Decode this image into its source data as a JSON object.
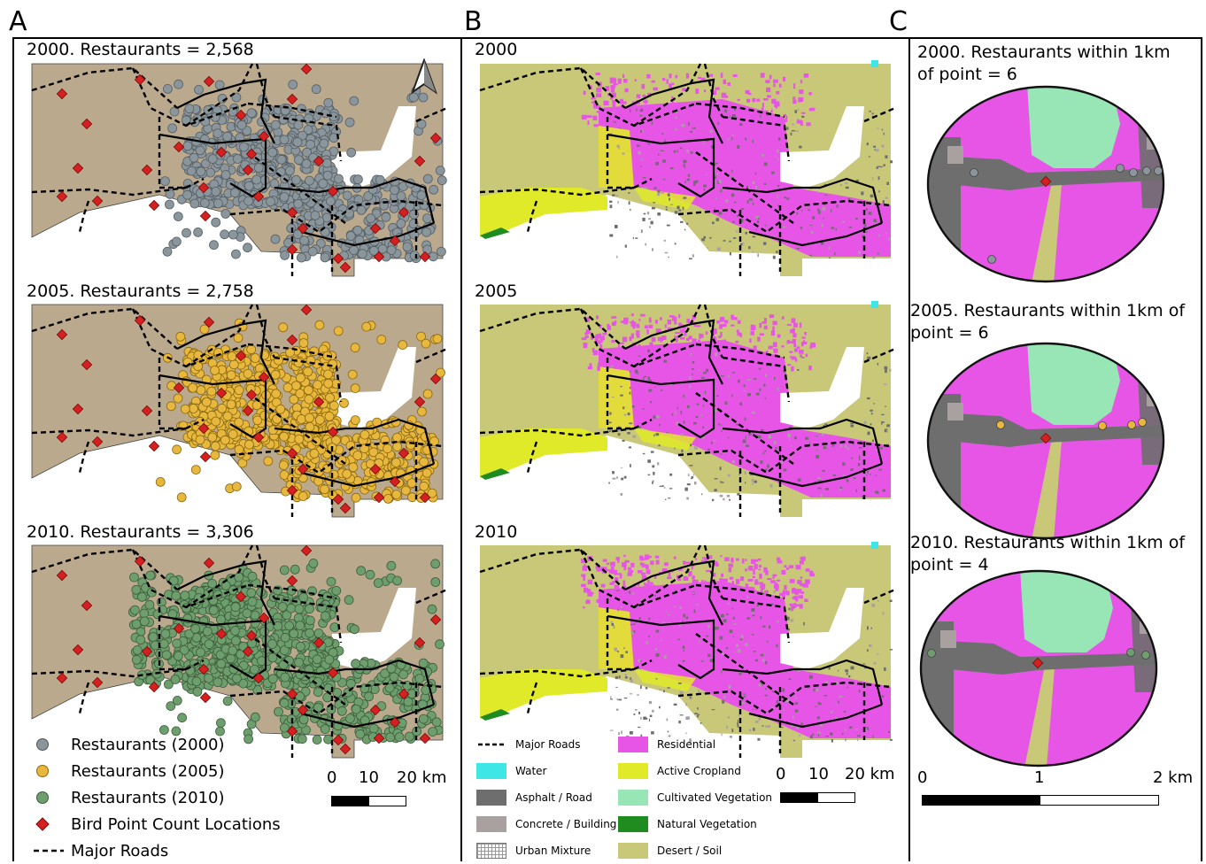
{
  "panel_labels": [
    "A",
    "B",
    "C"
  ],
  "panel_a": {
    "maps": [
      {
        "title": "2000. Restaurants = 2,568",
        "dot_color": "#8b969c"
      },
      {
        "title": "2005. Restaurants = 2,758",
        "dot_color": "#e8b73e"
      },
      {
        "title": "2010. Restaurants = 3,306",
        "dot_color": "#6e9e6e"
      }
    ],
    "legend": [
      {
        "label": "Restaurants (2000)",
        "color": "#8b969c",
        "symbol": "circle"
      },
      {
        "label": "Restaurants (2005)",
        "color": "#e8b73e",
        "symbol": "circle"
      },
      {
        "label": "Restaurants (2010)",
        "color": "#6e9e6e",
        "symbol": "circle"
      },
      {
        "label": "Bird Point Count Locations",
        "color": "#d42020",
        "symbol": "diamond"
      },
      {
        "label": "Major Roads",
        "color": "#000000",
        "symbol": "dashed-line"
      }
    ],
    "scale": {
      "ticks": [
        "0",
        "10",
        "20 km"
      ]
    },
    "north_arrow": "north-arrow-icon"
  },
  "panel_b": {
    "maps": [
      {
        "title": "2000"
      },
      {
        "title": "2005"
      },
      {
        "title": "2010"
      }
    ],
    "legend_left": [
      {
        "label": "Major Roads",
        "color": "#000000",
        "symbol": "dashed-line"
      },
      {
        "label": "Water",
        "color": "#3ee6e6"
      },
      {
        "label": "Asphalt / Road",
        "color": "#6e6e6e"
      },
      {
        "label": "Concrete / Building",
        "color": "#a9a0a0"
      },
      {
        "label": "Urban Mixture",
        "color": "#ffffff",
        "symbol": "grid"
      }
    ],
    "legend_right": [
      {
        "label": "Residential",
        "color": "#e655e6"
      },
      {
        "label": "Active Cropland",
        "color": "#e1ea28"
      },
      {
        "label": "Cultivated Vegetation",
        "color": "#98e6b6"
      },
      {
        "label": "Natural Vegetation",
        "color": "#1e8c1e"
      },
      {
        "label": "Desert / Soil",
        "color": "#c8c878"
      }
    ],
    "scale": {
      "ticks": [
        "0",
        "10",
        "20 km"
      ]
    }
  },
  "panel_c": {
    "maps": [
      {
        "title": "2000. Restaurants within 1km of point = 6"
      },
      {
        "title": "2005. Restaurants within 1km of point = 6"
      },
      {
        "title": "2010. Restaurants within 1km of point = 4"
      }
    ],
    "scale": {
      "ticks": [
        "0",
        "1",
        "2 km"
      ]
    }
  },
  "colors": {
    "map_base": "#bba98e",
    "white_area": "#ffffff",
    "residential": "#e655e6",
    "cropland": "#e1ea28",
    "cultivated": "#98e6b6",
    "natural": "#1e8c1e",
    "desert": "#c8c878",
    "asphalt": "#6e6e6e",
    "concrete": "#a9a0a0",
    "water": "#3ee6e6",
    "bird": "#d42020"
  }
}
